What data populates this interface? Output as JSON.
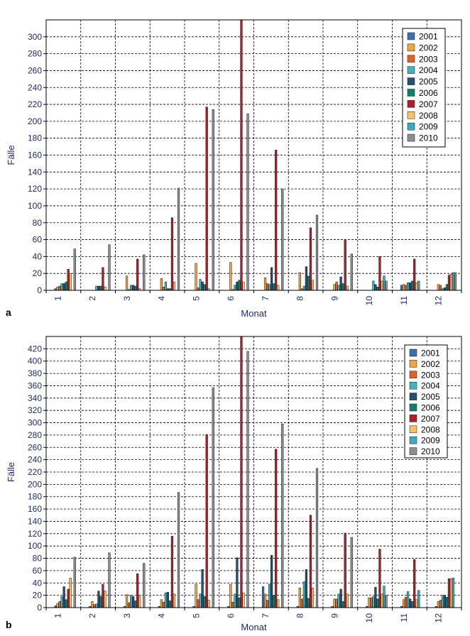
{
  "colors": {
    "2001": "#3a6fb0",
    "2002": "#f0a640",
    "2003": "#e0622c",
    "2004": "#45b2c4",
    "2005": "#27506f",
    "2006": "#11806d",
    "2007": "#b01e2c",
    "2008": "#f6c26a",
    "2009": "#40a8c0",
    "2010": "#8a8f96",
    "axis_text": "#1f2a6b",
    "grid": "#000000"
  },
  "chart_data": [
    {
      "type": "bar",
      "panel_label": "a",
      "xlabel": "Monat",
      "ylabel": "Fälle",
      "ylim": [
        0,
        320
      ],
      "yticks": [
        0,
        20,
        40,
        60,
        80,
        100,
        120,
        140,
        160,
        180,
        200,
        220,
        240,
        260,
        280,
        300
      ],
      "categories": [
        "1",
        "2",
        "3",
        "4",
        "5",
        "6",
        "7",
        "8",
        "9",
        "10",
        "11",
        "12"
      ],
      "grid": true,
      "legend_position": "top-right",
      "series": [
        {
          "name": "2001",
          "values": [
            2,
            0,
            0,
            0,
            0,
            0,
            0,
            0,
            0,
            0,
            6,
            0
          ]
        },
        {
          "name": "2002",
          "values": [
            4,
            0,
            17,
            14,
            32,
            33,
            15,
            21,
            7,
            0,
            7,
            7
          ]
        },
        {
          "name": "2003",
          "values": [
            5,
            0,
            1,
            4,
            3,
            1,
            8,
            2,
            10,
            0,
            6,
            6
          ]
        },
        {
          "name": "2004",
          "values": [
            8,
            5,
            6,
            10,
            13,
            6,
            7,
            5,
            6,
            11,
            9,
            2
          ]
        },
        {
          "name": "2005",
          "values": [
            8,
            5,
            6,
            2,
            10,
            10,
            27,
            28,
            16,
            7,
            9,
            3
          ]
        },
        {
          "name": "2006",
          "values": [
            10,
            5,
            5,
            2,
            7,
            12,
            8,
            17,
            8,
            4,
            11,
            7
          ]
        },
        {
          "name": "2007",
          "values": [
            25,
            27,
            37,
            86,
            217,
            320,
            166,
            74,
            60,
            40,
            37,
            18
          ]
        },
        {
          "name": "2008",
          "values": [
            20,
            4,
            2,
            10,
            2,
            10,
            6,
            12,
            5,
            11,
            9,
            19
          ]
        },
        {
          "name": "2009",
          "values": [
            0,
            0,
            0,
            0,
            0,
            0,
            0,
            0,
            0,
            17,
            11,
            21
          ]
        },
        {
          "name": "2010",
          "values": [
            49,
            54,
            42,
            121,
            214,
            209,
            120,
            89,
            43,
            11,
            0,
            21
          ]
        }
      ]
    },
    {
      "type": "bar",
      "panel_label": "b",
      "xlabel": "Monat",
      "ylabel": "Fälle",
      "ylim": [
        0,
        440
      ],
      "yticks": [
        0,
        20,
        40,
        60,
        80,
        100,
        120,
        140,
        160,
        180,
        200,
        220,
        240,
        260,
        280,
        300,
        320,
        340,
        360,
        380,
        400,
        420
      ],
      "categories": [
        "1",
        "2",
        "3",
        "4",
        "5",
        "6",
        "7",
        "8",
        "9",
        "10",
        "11",
        "12"
      ],
      "grid": true,
      "legend_position": "top-right",
      "series": [
        {
          "name": "2001",
          "values": [
            3,
            2,
            2,
            2,
            2,
            2,
            34,
            2,
            2,
            2,
            2,
            2
          ]
        },
        {
          "name": "2002",
          "values": [
            7,
            10,
            21,
            13,
            38,
            38,
            22,
            32,
            14,
            16,
            13,
            10
          ]
        },
        {
          "name": "2003",
          "values": [
            10,
            5,
            8,
            9,
            13,
            9,
            12,
            14,
            14,
            16,
            17,
            12
          ]
        },
        {
          "name": "2004",
          "values": [
            18,
            6,
            20,
            24,
            22,
            22,
            38,
            42,
            22,
            18,
            26,
            20
          ]
        },
        {
          "name": "2005",
          "values": [
            34,
            27,
            18,
            25,
            62,
            81,
            85,
            62,
            30,
            33,
            14,
            20
          ]
        },
        {
          "name": "2006",
          "values": [
            13,
            18,
            11,
            11,
            18,
            16,
            20,
            15,
            10,
            14,
            10,
            17
          ]
        },
        {
          "name": "2007",
          "values": [
            30,
            38,
            55,
            116,
            281,
            440,
            257,
            150,
            121,
            95,
            78,
            47
          ]
        },
        {
          "name": "2008",
          "values": [
            48,
            27,
            20,
            22,
            12,
            24,
            13,
            32,
            22,
            22,
            13,
            47
          ]
        },
        {
          "name": "2009",
          "values": [
            0,
            0,
            0,
            0,
            0,
            0,
            0,
            0,
            0,
            35,
            28,
            48
          ]
        },
        {
          "name": "2010",
          "values": [
            82,
            89,
            72,
            187,
            357,
            416,
            298,
            226,
            114,
            20,
            0,
            0
          ]
        }
      ]
    }
  ]
}
